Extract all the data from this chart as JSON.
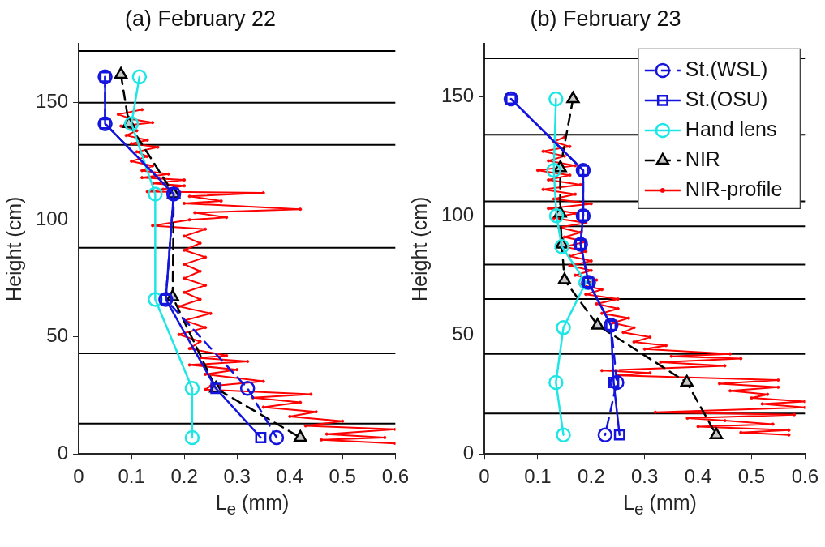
{
  "chart_data": [
    {
      "type": "line",
      "title": "(a) February 22",
      "xlabel": "L$_{e}$ (mm)",
      "ylabel": "Height (cm)",
      "xlim": [
        0,
        0.6
      ],
      "xticks": [
        0,
        0.1,
        0.2,
        0.3,
        0.4,
        0.5,
        0.6
      ],
      "ylim": [
        0,
        175
      ],
      "yticks": [
        0,
        50,
        100,
        150
      ],
      "series": [
        {
          "color": "#1414dc",
          "marker": "circle",
          "line_style": "dashed",
          "x": [
            0.05,
            0.05,
            0.18,
            0.165,
            0.32,
            0.375
          ],
          "values": [
            161,
            141,
            111,
            66,
            28,
            7
          ]
        },
        {
          "color": "#1414dc",
          "marker": "square",
          "line_style": "solid",
          "x": [
            0.05,
            0.05,
            0.18,
            0.165,
            0.26,
            0.345
          ],
          "values": [
            161,
            141,
            111,
            66,
            28,
            7
          ]
        },
        {
          "color": "#1ee6e6",
          "marker": "circle",
          "line_style": "solid",
          "x": [
            0.115,
            0.1,
            0.145,
            0.145,
            0.215,
            0.215
          ],
          "values": [
            161,
            141,
            111,
            66,
            28,
            7
          ]
        },
        {
          "color": "#000000",
          "marker": "triangle",
          "line_style": "dashed",
          "x": [
            0.08,
            0.095,
            0.18,
            0.178,
            0.26,
            0.42
          ],
          "values": [
            162,
            141,
            111,
            67,
            28,
            7
          ]
        },
        {
          "color": "#ff0000",
          "marker": "circle",
          "line_style": "solid",
          "x": [
            0.12,
            0.075,
            0.1,
            0.14,
            0.08,
            0.11,
            0.09,
            0.13,
            0.1,
            0.15,
            0.11,
            0.13,
            0.1,
            0.14,
            0.12,
            0.17,
            0.12,
            0.2,
            0.14,
            0.2,
            0.16,
            0.13,
            0.35,
            0.21,
            0.27,
            0.2,
            0.42,
            0.22,
            0.28,
            0.21,
            0.14,
            0.24,
            0.2,
            0.23,
            0.2,
            0.24,
            0.2,
            0.23,
            0.2,
            0.24,
            0.2,
            0.23,
            0.19,
            0.25,
            0.2,
            0.24,
            0.19,
            0.23,
            0.21,
            0.28,
            0.23,
            0.32,
            0.21,
            0.3,
            0.24,
            0.35,
            0.25,
            0.24,
            0.44,
            0.33,
            0.42,
            0.35,
            0.45,
            0.4,
            0.5,
            0.43,
            0.6,
            0.47,
            0.58,
            0.46,
            0.6
          ],
          "values": [
            147,
            145,
            143,
            141.5,
            140,
            138,
            136,
            134,
            132.5,
            131,
            129,
            127,
            125,
            123,
            121,
            119.5,
            118,
            117,
            115.5,
            114.5,
            113,
            112,
            111.5,
            110,
            108,
            107,
            104.5,
            103,
            101,
            100,
            97.5,
            96,
            93,
            90,
            87,
            84,
            81,
            78,
            75,
            72,
            69,
            66,
            63,
            60,
            57,
            54,
            51,
            48,
            45,
            42,
            41,
            39.5,
            38,
            36,
            34,
            31,
            29,
            27.5,
            25.5,
            24,
            22,
            20,
            18,
            16,
            14,
            12,
            10.5,
            8.5,
            7,
            6,
            4.5
          ]
        }
      ],
      "ref_lines": [
        {
          "axis": "y",
          "value": 172,
          "color": "#000000"
        },
        {
          "axis": "y",
          "value": 150,
          "color": "#000000"
        },
        {
          "axis": "y",
          "value": 132,
          "color": "#000000"
        },
        {
          "axis": "y",
          "value": 88,
          "color": "#000000"
        },
        {
          "axis": "y",
          "value": 43,
          "color": "#000000"
        },
        {
          "axis": "y",
          "value": 13,
          "color": "#000000"
        }
      ]
    },
    {
      "type": "line",
      "title": "(b) February 23",
      "xlabel": "L$_{e}$ (mm)",
      "ylabel": "Height (cm)",
      "xlim": [
        0,
        0.6
      ],
      "xticks": [
        0,
        0.1,
        0.2,
        0.3,
        0.4,
        0.5,
        0.6
      ],
      "ylim": [
        0,
        172
      ],
      "yticks": [
        0,
        50,
        100,
        150
      ],
      "legend": "top right",
      "series": [
        {
          "name": "St.(WSL)",
          "color": "#1414dc",
          "marker": "circle",
          "line_style": "dashed",
          "x": [
            0.05,
            0.185,
            0.185,
            0.18,
            0.195,
            0.237,
            0.248,
            0.226
          ],
          "values": [
            149,
            119,
            100,
            88,
            72,
            54,
            30,
            8
          ]
        },
        {
          "name": "St.(OSU)",
          "color": "#1414dc",
          "marker": "square",
          "line_style": "solid",
          "x": [
            0.05,
            0.185,
            0.185,
            0.18,
            0.195,
            0.237,
            0.242,
            0.253
          ],
          "values": [
            149,
            119,
            100,
            88,
            72,
            54,
            30,
            8
          ]
        },
        {
          "name": "Hand lens",
          "color": "#1ee6e6",
          "marker": "circle",
          "line_style": "solid",
          "x": [
            0.134,
            0.13,
            0.135,
            0.145,
            0.19,
            0.148,
            0.134,
            0.148
          ],
          "values": [
            149,
            119,
            100,
            87,
            72,
            53,
            30,
            8
          ]
        },
        {
          "name": "NIR",
          "color": "#000000",
          "marker": "triangle",
          "line_style": "dashed",
          "x": [
            0.166,
            0.142,
            0.142,
            0.145,
            0.15,
            0.212,
            0.379,
            0.434
          ],
          "values": [
            149,
            120,
            101,
            88,
            73,
            54,
            30,
            8
          ]
        },
        {
          "name": "NIR-profile",
          "color": "#ff0000",
          "marker": "circle",
          "line_style": "solid",
          "x": [
            0.15,
            0.13,
            0.16,
            0.11,
            0.15,
            0.12,
            0.17,
            0.1,
            0.16,
            0.12,
            0.18,
            0.11,
            0.17,
            0.13,
            0.2,
            0.12,
            0.17,
            0.13,
            0.19,
            0.14,
            0.18,
            0.15,
            0.19,
            0.15,
            0.19,
            0.16,
            0.2,
            0.16,
            0.2,
            0.17,
            0.21,
            0.18,
            0.22,
            0.19,
            0.25,
            0.21,
            0.25,
            0.22,
            0.27,
            0.24,
            0.28,
            0.26,
            0.31,
            0.28,
            0.34,
            0.3,
            0.46,
            0.35,
            0.48,
            0.33,
            0.45,
            0.22,
            0.31,
            0.25,
            0.55,
            0.44,
            0.55,
            0.46,
            0.53,
            0.5,
            0.6,
            0.52,
            0.6,
            0.32,
            0.58,
            0.38,
            0.45,
            0.54,
            0.4,
            0.57,
            0.48,
            0.57
          ],
          "values": [
            133,
            131,
            129,
            127,
            125,
            123,
            121,
            119,
            117,
            115,
            113,
            111,
            109,
            107,
            105,
            103,
            101,
            99,
            97,
            95,
            93,
            91,
            89,
            87,
            85,
            83,
            81,
            79,
            77,
            75,
            73,
            71,
            69,
            67,
            65,
            63,
            61,
            59,
            57,
            55,
            53,
            51,
            49,
            47,
            45.5,
            44,
            42,
            41,
            40,
            38.5,
            37,
            35,
            34,
            33,
            31,
            29.5,
            28,
            26.5,
            25,
            23.5,
            22,
            21,
            19.5,
            17.5,
            16.5,
            15,
            14,
            12.5,
            11.5,
            10,
            9,
            8
          ]
        }
      ],
      "ref_lines": [
        {
          "axis": "y",
          "value": 166,
          "color": "#000000"
        },
        {
          "axis": "y",
          "value": 134,
          "color": "#000000"
        },
        {
          "axis": "y",
          "value": 106,
          "color": "#000000"
        },
        {
          "axis": "y",
          "value": 95.5,
          "color": "#000000"
        },
        {
          "axis": "y",
          "value": 79.5,
          "color": "#000000"
        },
        {
          "axis": "y",
          "value": 65,
          "color": "#000000"
        },
        {
          "axis": "y",
          "value": 42,
          "color": "#000000"
        },
        {
          "axis": "y",
          "value": 17,
          "color": "#000000"
        }
      ]
    }
  ]
}
